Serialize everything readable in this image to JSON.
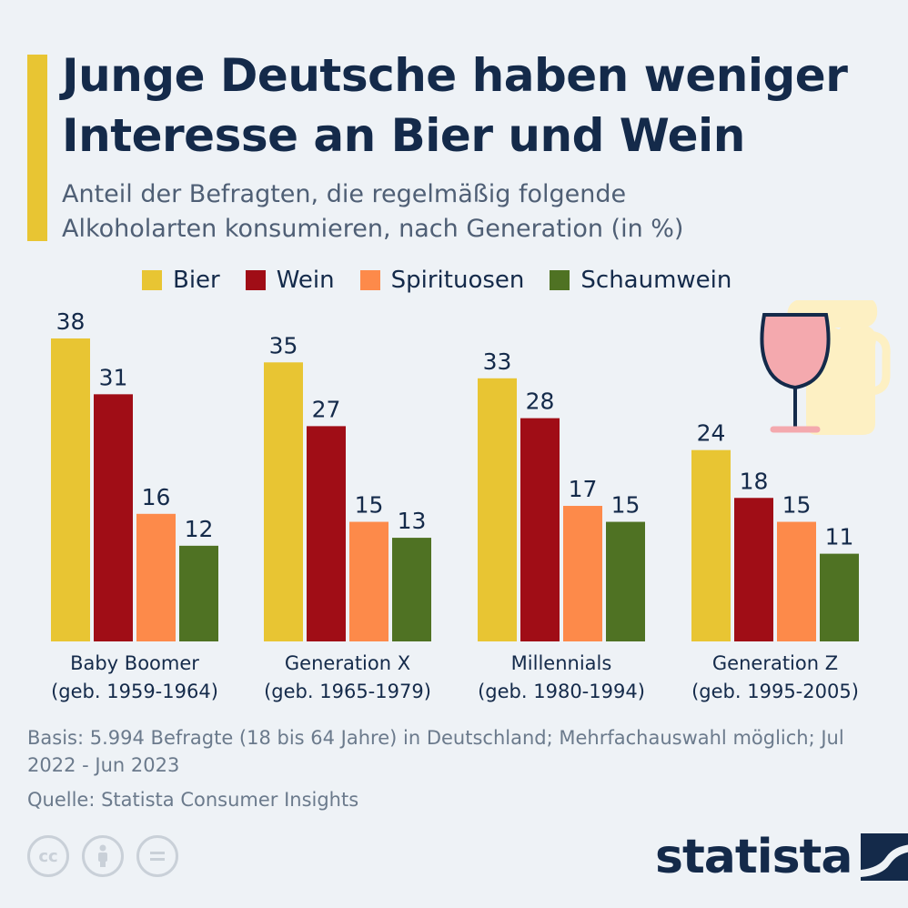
{
  "header": {
    "title_line1": "Junge Deutsche haben weniger",
    "title_line2": "Interesse an Bier und Wein",
    "subtitle_line1": "Anteil der Befragten, die regelmäßig folgende",
    "subtitle_line2": "Alkoholarten konsumieren, nach Generation (in %)"
  },
  "colors": {
    "accent": "#e8c533",
    "title": "#142a4a",
    "background": "#eef2f6"
  },
  "chart_data": {
    "type": "bar",
    "categories": [
      [
        "Baby Boomer",
        "(geb. 1959-1964)"
      ],
      [
        "Generation X",
        "(geb. 1965-1979)"
      ],
      [
        "Millennials",
        "(geb. 1980-1994)"
      ],
      [
        "Generation Z",
        "(geb. 1995-2005)"
      ]
    ],
    "series": [
      {
        "name": "Bier",
        "color": "#e8c533",
        "values": [
          38,
          35,
          33,
          24
        ]
      },
      {
        "name": "Wein",
        "color": "#a00d16",
        "values": [
          31,
          27,
          28,
          18
        ]
      },
      {
        "name": "Spirituosen",
        "color": "#fd8a4a",
        "values": [
          16,
          15,
          17,
          15
        ]
      },
      {
        "name": "Schaumwein",
        "color": "#4f7223",
        "values": [
          12,
          13,
          15,
          11
        ]
      }
    ],
    "ylim": [
      0,
      38
    ],
    "grid": false,
    "legend_position": "top"
  },
  "illustration": {
    "name": "wine-glass-and-beer-mug-icon"
  },
  "footer": {
    "basis": "Basis: 5.994 Befragte (18 bis 64 Jahre) in Deutschland; Mehrfachauswahl möglich; Jul 2022 - Jun 2023",
    "source": "Quelle: Statista Consumer Insights"
  },
  "license_icons": [
    "cc-icon",
    "by-icon",
    "nd-icon"
  ],
  "brand": {
    "name": "statista"
  }
}
